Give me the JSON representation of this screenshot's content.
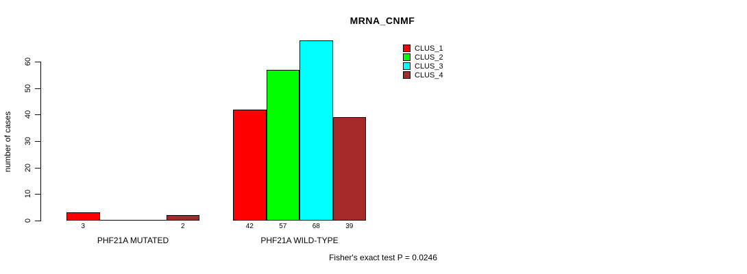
{
  "chart": {
    "title": "MRNA_CNMF",
    "footer": "Fisher's exact test P = 0.0246"
  },
  "chart_data": {
    "type": "bar",
    "title": "MRNA_CNMF",
    "xlabel": "",
    "ylabel": "number of cases",
    "categories": [
      "PHF21A MUTATED",
      "PHF21A WILD-TYPE"
    ],
    "series": [
      {
        "name": "CLUS_1",
        "color": "#FF0000",
        "values": [
          3,
          42
        ]
      },
      {
        "name": "CLUS_2",
        "color": "#00FF00",
        "values": [
          0,
          57
        ]
      },
      {
        "name": "CLUS_3",
        "color": "#00FFFF",
        "values": [
          0,
          68
        ]
      },
      {
        "name": "CLUS_4",
        "color": "#A52A2A",
        "values": [
          2,
          39
        ]
      }
    ],
    "yticks": [
      0,
      10,
      20,
      30,
      40,
      50,
      60
    ],
    "ylim": [
      0,
      68
    ],
    "grid": false,
    "legend_position": "top-right",
    "bar_value_labels": {
      "show": true,
      "hide_zero": true
    },
    "annotation": "Fisher's exact test P = 0.0246"
  }
}
